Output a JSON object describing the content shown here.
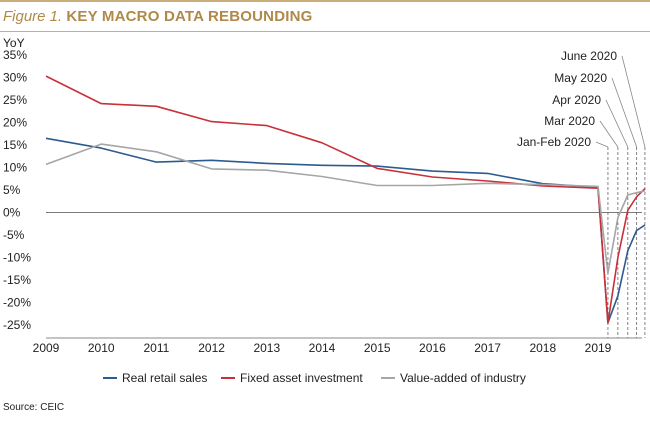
{
  "figure": {
    "label": "Figure 1.",
    "title": "KEY MACRO DATA REBOUNDING",
    "source": "Source: CEIC"
  },
  "colors": {
    "accent": "#b0894a",
    "rule": "#c9ad7a"
  },
  "chart_data": {
    "type": "line",
    "title": "KEY MACRO DATA REBOUNDING",
    "ylabel": "YoY",
    "xlabel": "",
    "ylim": [
      -27,
      37
    ],
    "y_ticks": [
      35,
      30,
      25,
      20,
      15,
      10,
      5,
      0,
      -5,
      -10,
      -15,
      -20,
      -25
    ],
    "y_tick_labels": [
      "35%",
      "30%",
      "25%",
      "20%",
      "15%",
      "10%",
      "5%",
      "0%",
      "-5%",
      "-10%",
      "-15%",
      "-20%",
      "-25%"
    ],
    "x_ticks": [
      2009,
      2010,
      2011,
      2012,
      2013,
      2014,
      2015,
      2016,
      2017,
      2018,
      2019
    ],
    "x_tick_labels": [
      "2009",
      "2010",
      "2011",
      "2012",
      "2013",
      "2014",
      "2015",
      "2016",
      "2017",
      "2018",
      "2019"
    ],
    "xlim": [
      2009,
      2019.85
    ],
    "grid": false,
    "legend_position": "bottom",
    "series": [
      {
        "name": "Real retail sales",
        "color": "#2e5b8e",
        "points": [
          [
            2009,
            16.5
          ],
          [
            2010,
            14.3
          ],
          [
            2011,
            11.2
          ],
          [
            2012,
            11.6
          ],
          [
            2013,
            10.9
          ],
          [
            2014,
            10.5
          ],
          [
            2015,
            10.3
          ],
          [
            2016,
            9.2
          ],
          [
            2017,
            8.7
          ],
          [
            2018,
            6.4
          ],
          [
            2019,
            5.6
          ],
          [
            2019.18,
            -24.5
          ],
          [
            2019.36,
            -18.5
          ],
          [
            2019.54,
            -8.5
          ],
          [
            2019.7,
            -4.0
          ],
          [
            2019.85,
            -2.8
          ]
        ]
      },
      {
        "name": "Fixed asset investment",
        "color": "#c8313a",
        "points": [
          [
            2009,
            30.3
          ],
          [
            2010,
            24.2
          ],
          [
            2011,
            23.6
          ],
          [
            2012,
            20.2
          ],
          [
            2013,
            19.3
          ],
          [
            2014,
            15.5
          ],
          [
            2015,
            9.8
          ],
          [
            2016,
            7.9
          ],
          [
            2017,
            7.0
          ],
          [
            2018,
            5.9
          ],
          [
            2019,
            5.4
          ],
          [
            2019.18,
            -24.5
          ],
          [
            2019.36,
            -10.0
          ],
          [
            2019.54,
            0.5
          ],
          [
            2019.7,
            3.5
          ],
          [
            2019.85,
            5.3
          ]
        ]
      },
      {
        "name": "Value-added of industry",
        "color": "#a6a6a6",
        "points": [
          [
            2009,
            10.7
          ],
          [
            2010,
            15.2
          ],
          [
            2011,
            13.5
          ],
          [
            2012,
            9.7
          ],
          [
            2013,
            9.4
          ],
          [
            2014,
            8.0
          ],
          [
            2015,
            6.0
          ],
          [
            2016,
            6.0
          ],
          [
            2017,
            6.5
          ],
          [
            2018,
            6.2
          ],
          [
            2019,
            5.8
          ],
          [
            2019.18,
            -13.5
          ],
          [
            2019.36,
            -1.1
          ],
          [
            2019.54,
            3.9
          ],
          [
            2019.7,
            4.4
          ],
          [
            2019.85,
            4.8
          ]
        ]
      }
    ],
    "annotations": [
      {
        "label": "Jan-Feb 2020",
        "x": 2019.18
      },
      {
        "label": "Mar 2020",
        "x": 2019.36
      },
      {
        "label": "Apr 2020",
        "x": 2019.54
      },
      {
        "label": "May 2020",
        "x": 2019.7
      },
      {
        "label": "June 2020",
        "x": 2019.85
      }
    ]
  }
}
